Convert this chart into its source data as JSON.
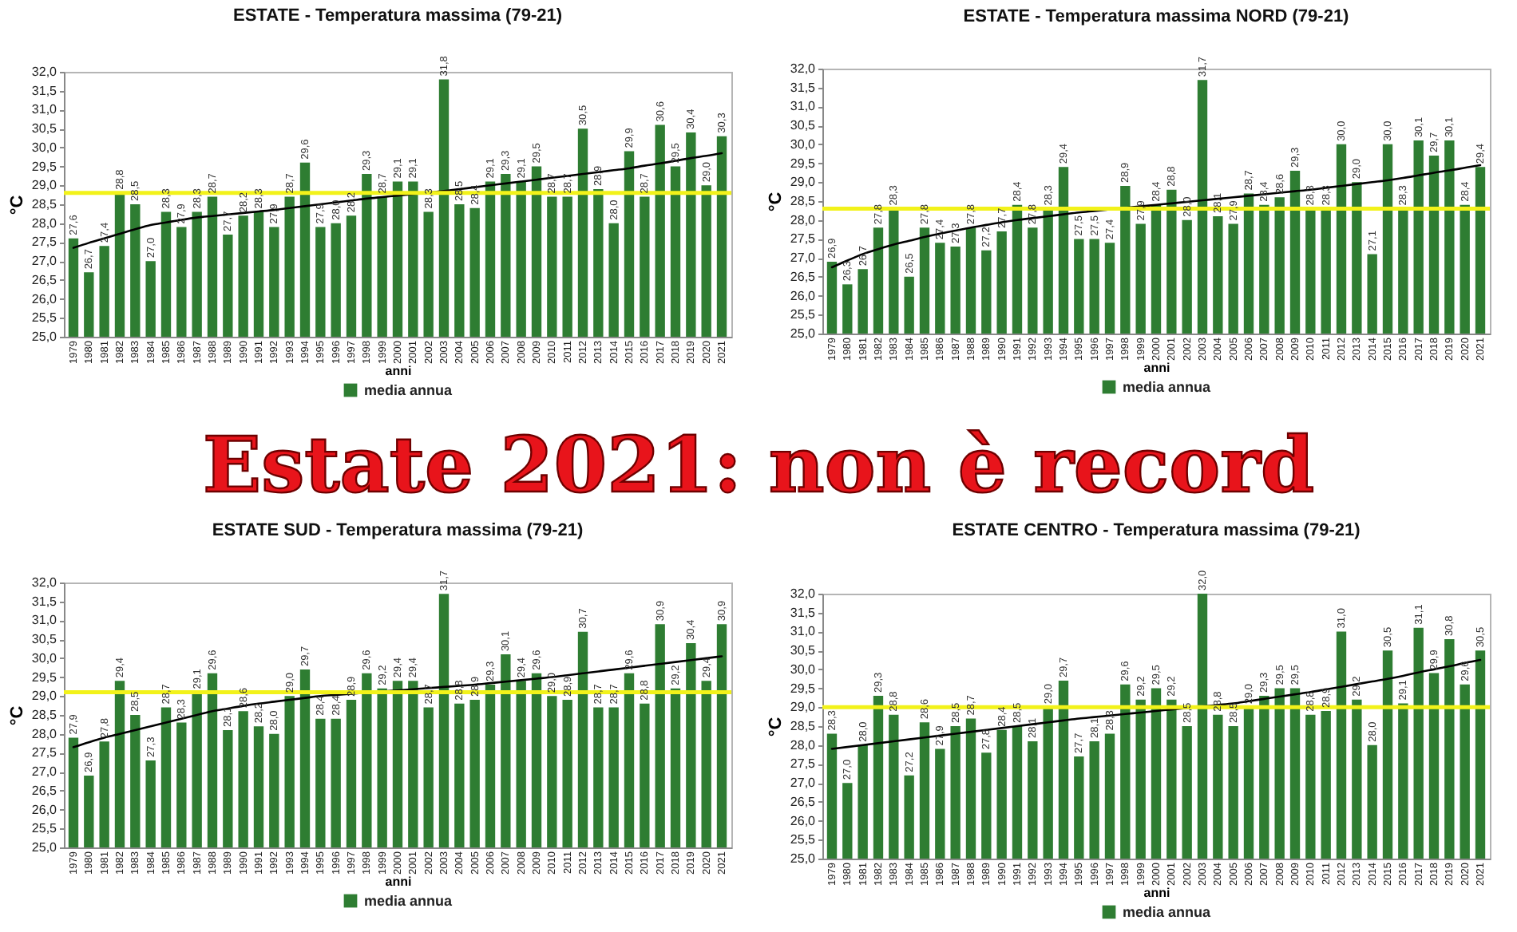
{
  "chart_data": [
    {
      "type": "bar",
      "title": "ESTATE - Temperatura massima (79-21)",
      "xlabel": "anni",
      "ylabel": "°C",
      "legend": "bottom",
      "grid": false,
      "categories": [
        "1979",
        "1980",
        "1981",
        "1982",
        "1983",
        "1984",
        "1985",
        "1986",
        "1987",
        "1988",
        "1989",
        "1990",
        "1991",
        "1992",
        "1993",
        "1994",
        "1995",
        "1996",
        "1997",
        "1998",
        "1999",
        "2000",
        "2001",
        "2002",
        "2003",
        "2004",
        "2005",
        "2006",
        "2007",
        "2008",
        "2009",
        "2010",
        "2011",
        "2012",
        "2013",
        "2014",
        "2015",
        "2016",
        "2017",
        "2018",
        "2019",
        "2020",
        "2021"
      ],
      "series": [
        {
          "name": "media annua",
          "type": "bar",
          "color": "#2e7d32",
          "values": [
            27.6,
            26.7,
            27.4,
            28.8,
            28.5,
            27.0,
            28.3,
            27.9,
            28.3,
            28.7,
            27.7,
            28.2,
            28.3,
            27.9,
            28.7,
            29.6,
            27.9,
            28.0,
            28.2,
            29.3,
            28.7,
            29.1,
            29.1,
            28.3,
            31.8,
            28.5,
            28.4,
            29.1,
            29.3,
            29.1,
            29.5,
            28.7,
            28.7,
            30.5,
            28.9,
            28.0,
            29.9,
            28.7,
            30.6,
            29.5,
            30.4,
            29.0,
            30.3
          ],
          "value_labels": [
            "27,6",
            "26,7",
            "27,4",
            "28,8",
            "28,5",
            "27,0",
            "28,3",
            "27,9",
            "28,3",
            "28,7",
            "27,7",
            "28,2",
            "28,3",
            "27,9",
            "28,7",
            "29,6",
            "27,9",
            "28,0",
            "28,2",
            "29,3",
            "28,7",
            "29,1",
            "29,1",
            "28,3",
            "31,8",
            "28,5",
            "28,4",
            "29,1",
            "29,3",
            "29,1",
            "29,5",
            "28,7",
            "28,7",
            "30,5",
            "28,9",
            "28,0",
            "29,9",
            "28,7",
            "30,6",
            "29,5",
            "30,4",
            "29,0",
            "30,3"
          ]
        },
        {
          "type": "line",
          "color": "#000000",
          "values": [
            27.35,
            27.48,
            27.6,
            27.72,
            27.84,
            27.95,
            28.02,
            28.09,
            28.15,
            28.19,
            28.23,
            28.27,
            28.31,
            28.35,
            28.4,
            28.45,
            28.5,
            28.55,
            28.6,
            28.65,
            28.69,
            28.73,
            28.77,
            28.81,
            28.85,
            28.9,
            28.95,
            29.0,
            29.05,
            29.1,
            29.15,
            29.2,
            29.25,
            29.3,
            29.35,
            29.4,
            29.45,
            29.52,
            29.58,
            29.65,
            29.72,
            29.78,
            29.85
          ]
        }
      ],
      "ref_lines": [
        {
          "axis": "y",
          "value": 28.8,
          "color": "#f2f21a"
        }
      ],
      "ylim": [
        25,
        32
      ],
      "yticks": [
        {
          "value": 25,
          "label": "25,0"
        },
        {
          "value": 25.5,
          "label": "25,5"
        },
        {
          "value": 26,
          "label": "26,0"
        },
        {
          "value": 26.5,
          "label": "26,5"
        },
        {
          "value": 27,
          "label": "27,0"
        },
        {
          "value": 27.5,
          "label": "27,5"
        },
        {
          "value": 28,
          "label": "28,0"
        },
        {
          "value": 28.5,
          "label": "28,5"
        },
        {
          "value": 29,
          "label": "29,0"
        },
        {
          "value": 29.5,
          "label": "29,5"
        },
        {
          "value": 30,
          "label": "30,0"
        },
        {
          "value": 30.5,
          "label": "30,5"
        },
        {
          "value": 31,
          "label": "31,0"
        },
        {
          "value": 31.5,
          "label": "31,5"
        },
        {
          "value": 32,
          "label": "32,0"
        }
      ]
    },
    {
      "type": "bar",
      "title": "ESTATE - Temperatura massima NORD (79-21)",
      "xlabel": "anni",
      "ylabel": "°C",
      "legend": "bottom",
      "grid": false,
      "categories": [
        "1979",
        "1980",
        "1981",
        "1982",
        "1983",
        "1984",
        "1985",
        "1986",
        "1987",
        "1988",
        "1989",
        "1990",
        "1991",
        "1992",
        "1993",
        "1994",
        "1995",
        "1996",
        "1997",
        "1998",
        "1999",
        "2000",
        "2001",
        "2002",
        "2003",
        "2004",
        "2005",
        "2006",
        "2007",
        "2008",
        "2009",
        "2010",
        "2011",
        "2012",
        "2013",
        "2014",
        "2015",
        "2016",
        "2017",
        "2018",
        "2019",
        "2020",
        "2021"
      ],
      "series": [
        {
          "name": "media annua",
          "type": "bar",
          "color": "#2e7d32",
          "values": [
            26.9,
            26.3,
            26.7,
            27.8,
            28.3,
            26.5,
            27.8,
            27.4,
            27.3,
            27.8,
            27.2,
            27.7,
            28.4,
            27.8,
            28.3,
            29.4,
            27.5,
            27.5,
            27.4,
            28.9,
            27.9,
            28.4,
            28.8,
            28.0,
            31.7,
            28.1,
            27.9,
            28.7,
            28.4,
            28.6,
            29.3,
            28.3,
            28.3,
            30.0,
            29.0,
            27.1,
            30.0,
            28.3,
            30.1,
            29.7,
            30.1,
            28.4,
            29.4
          ],
          "value_labels": [
            "26,9",
            "26,3",
            "26,7",
            "27,8",
            "28,3",
            "26,5",
            "27,8",
            "27,4",
            "27,3",
            "27,8",
            "27,2",
            "27,7",
            "28,4",
            "27,8",
            "28,3",
            "29,4",
            "27,5",
            "27,5",
            "27,4",
            "28,9",
            "27,9",
            "28,4",
            "28,8",
            "28,0",
            "31,7",
            "28,1",
            "27,9",
            "28,7",
            "28,4",
            "28,6",
            "29,3",
            "28,3",
            "28,3",
            "30,0",
            "29,0",
            "27,1",
            "30,0",
            "28,3",
            "30,1",
            "29,7",
            "30,1",
            "28,4",
            "29,4"
          ]
        },
        {
          "type": "line",
          "color": "#000000",
          "values": [
            26.75,
            26.93,
            27.1,
            27.23,
            27.35,
            27.45,
            27.55,
            27.64,
            27.72,
            27.8,
            27.87,
            27.94,
            28.0,
            28.05,
            28.1,
            28.15,
            28.2,
            28.24,
            28.28,
            28.32,
            28.36,
            28.4,
            28.44,
            28.48,
            28.52,
            28.56,
            28.6,
            28.64,
            28.68,
            28.72,
            28.76,
            28.8,
            28.85,
            28.9,
            28.95,
            29.0,
            29.05,
            29.11,
            29.18,
            29.25,
            29.31,
            29.38,
            29.45
          ]
        }
      ],
      "ref_lines": [
        {
          "axis": "y",
          "value": 28.3,
          "color": "#f2f21a"
        }
      ],
      "ylim": [
        25,
        32
      ],
      "yticks": [
        {
          "value": 25,
          "label": "25,0"
        },
        {
          "value": 25.5,
          "label": "25,5"
        },
        {
          "value": 26,
          "label": "26,0"
        },
        {
          "value": 26.5,
          "label": "26,5"
        },
        {
          "value": 27,
          "label": "27,0"
        },
        {
          "value": 27.5,
          "label": "27,5"
        },
        {
          "value": 28,
          "label": "28,0"
        },
        {
          "value": 28.5,
          "label": "28,5"
        },
        {
          "value": 29,
          "label": "29,0"
        },
        {
          "value": 29.5,
          "label": "29,5"
        },
        {
          "value": 30,
          "label": "30,0"
        },
        {
          "value": 30.5,
          "label": "30,5"
        },
        {
          "value": 31,
          "label": "31,0"
        },
        {
          "value": 31.5,
          "label": "31,5"
        },
        {
          "value": 32,
          "label": "32,0"
        }
      ]
    },
    {
      "type": "other",
      "title": "Estate 2021: non è record"
    },
    {
      "type": "bar",
      "title": "ESTATE SUD - Temperatura massima (79-21)",
      "xlabel": "anni",
      "ylabel": "°C",
      "legend": "bottom",
      "grid": false,
      "categories": [
        "1979",
        "1980",
        "1981",
        "1982",
        "1983",
        "1984",
        "1985",
        "1986",
        "1987",
        "1988",
        "1989",
        "1990",
        "1991",
        "1992",
        "1993",
        "1994",
        "1995",
        "1996",
        "1997",
        "1998",
        "1999",
        "2000",
        "2001",
        "2002",
        "2003",
        "2004",
        "2005",
        "2006",
        "2007",
        "2008",
        "2009",
        "2010",
        "2011",
        "2012",
        "2013",
        "2014",
        "2015",
        "2016",
        "2017",
        "2018",
        "2019",
        "2020",
        "2021"
      ],
      "series": [
        {
          "name": "media annua",
          "type": "bar",
          "color": "#2e7d32",
          "values": [
            27.9,
            26.9,
            27.8,
            29.4,
            28.5,
            27.3,
            28.7,
            28.3,
            29.1,
            29.6,
            28.1,
            28.6,
            28.2,
            28.0,
            29.0,
            29.7,
            28.4,
            28.4,
            28.9,
            29.6,
            29.2,
            29.4,
            29.4,
            28.7,
            31.7,
            28.8,
            28.9,
            29.3,
            30.1,
            29.4,
            29.6,
            29.0,
            28.9,
            30.7,
            28.7,
            28.7,
            29.6,
            28.8,
            30.9,
            29.2,
            30.4,
            29.4,
            30.9
          ],
          "value_labels": [
            "27,9",
            "26,9",
            "27,8",
            "29,4",
            "28,5",
            "27,3",
            "28,7",
            "28,3",
            "29,1",
            "29,6",
            "28,1",
            "28,6",
            "28,2",
            "28,0",
            "29,0",
            "29,7",
            "28,4",
            "28,4",
            "28,9",
            "29,6",
            "29,2",
            "29,4",
            "29,4",
            "28,7",
            "31,7",
            "28,8",
            "28,9",
            "29,3",
            "30,1",
            "29,4",
            "29,6",
            "29,0",
            "28,9",
            "30,7",
            "28,7",
            "28,7",
            "29,6",
            "28,8",
            "30,9",
            "29,2",
            "30,4",
            "29,4",
            "30,9"
          ]
        },
        {
          "type": "line",
          "color": "#000000",
          "values": [
            27.65,
            27.78,
            27.9,
            28.0,
            28.1,
            28.2,
            28.3,
            28.4,
            28.5,
            28.6,
            28.67,
            28.74,
            28.8,
            28.85,
            28.9,
            28.95,
            29.0,
            29.03,
            29.06,
            29.09,
            29.12,
            29.15,
            29.18,
            29.21,
            29.24,
            29.27,
            29.3,
            29.34,
            29.38,
            29.42,
            29.46,
            29.5,
            29.55,
            29.6,
            29.65,
            29.7,
            29.75,
            29.8,
            29.85,
            29.9,
            29.95,
            30.0,
            30.05
          ]
        }
      ],
      "ref_lines": [
        {
          "axis": "y",
          "value": 29.1,
          "color": "#f2f21a"
        }
      ],
      "ylim": [
        25,
        32
      ],
      "yticks": [
        {
          "value": 25,
          "label": "25,0"
        },
        {
          "value": 25.5,
          "label": "25,5"
        },
        {
          "value": 26,
          "label": "26,0"
        },
        {
          "value": 26.5,
          "label": "26,5"
        },
        {
          "value": 27,
          "label": "27,0"
        },
        {
          "value": 27.5,
          "label": "27,5"
        },
        {
          "value": 28,
          "label": "28,0"
        },
        {
          "value": 28.5,
          "label": "28,5"
        },
        {
          "value": 29,
          "label": "29,0"
        },
        {
          "value": 29.5,
          "label": "29,5"
        },
        {
          "value": 30,
          "label": "30,0"
        },
        {
          "value": 30.5,
          "label": "30,5"
        },
        {
          "value": 31,
          "label": "31,0"
        },
        {
          "value": 31.5,
          "label": "31,5"
        },
        {
          "value": 32,
          "label": "32,0"
        }
      ]
    },
    {
      "type": "bar",
      "title": "ESTATE CENTRO - Temperatura massima (79-21)",
      "xlabel": "anni",
      "ylabel": "°C",
      "legend": "bottom",
      "grid": false,
      "categories": [
        "1979",
        "1980",
        "1981",
        "1982",
        "1983",
        "1984",
        "1985",
        "1986",
        "1987",
        "1988",
        "1989",
        "1990",
        "1991",
        "1992",
        "1993",
        "1994",
        "1995",
        "1996",
        "1997",
        "1998",
        "1999",
        "2000",
        "2001",
        "2002",
        "2003",
        "2004",
        "2005",
        "2006",
        "2007",
        "2008",
        "2009",
        "2010",
        "2011",
        "2012",
        "2013",
        "2014",
        "2015",
        "2016",
        "2017",
        "2018",
        "2019",
        "2020",
        "2021"
      ],
      "series": [
        {
          "name": "media annua",
          "type": "bar",
          "color": "#2e7d32",
          "values": [
            28.3,
            27.0,
            28.0,
            29.3,
            28.8,
            27.2,
            28.6,
            27.9,
            28.5,
            28.7,
            27.8,
            28.4,
            28.5,
            28.1,
            29.0,
            29.7,
            27.7,
            28.1,
            28.3,
            29.6,
            29.2,
            29.5,
            29.2,
            28.5,
            32.0,
            28.8,
            28.5,
            29.0,
            29.3,
            29.5,
            29.5,
            28.8,
            28.9,
            31.0,
            29.2,
            28.0,
            30.5,
            29.1,
            31.1,
            29.9,
            30.8,
            29.6,
            30.5
          ],
          "value_labels": [
            "28,3",
            "27,0",
            "28,0",
            "29,3",
            "28,8",
            "27,2",
            "28,6",
            "27,9",
            "28,5",
            "28,7",
            "27,8",
            "28,4",
            "28,5",
            "28,1",
            "29,0",
            "29,7",
            "27,7",
            "28,1",
            "28,3",
            "29,6",
            "29,2",
            "29,5",
            "29,2",
            "28,5",
            "32,0",
            "28,8",
            "28,5",
            "29,0",
            "29,3",
            "29,5",
            "29,5",
            "28,8",
            "28,9",
            "31,0",
            "29,2",
            "28,0",
            "30,5",
            "29,1",
            "31,1",
            "29,9",
            "30,8",
            "29,6",
            "30,5"
          ]
        },
        {
          "type": "line",
          "color": "#000000",
          "values": [
            27.9,
            27.95,
            28.0,
            28.05,
            28.1,
            28.15,
            28.2,
            28.25,
            28.3,
            28.35,
            28.4,
            28.45,
            28.5,
            28.55,
            28.6,
            28.65,
            28.7,
            28.74,
            28.78,
            28.82,
            28.86,
            28.9,
            28.94,
            28.98,
            29.02,
            29.06,
            29.1,
            29.16,
            29.22,
            29.28,
            29.34,
            29.4,
            29.47,
            29.54,
            29.61,
            29.68,
            29.75,
            29.83,
            29.92,
            30.0,
            30.08,
            30.17,
            30.25
          ]
        }
      ],
      "ref_lines": [
        {
          "axis": "y",
          "value": 29.0,
          "color": "#f2f21a"
        }
      ],
      "ylim": [
        25,
        32
      ],
      "yticks": [
        {
          "value": 25,
          "label": "25,0"
        },
        {
          "value": 25.5,
          "label": "25,5"
        },
        {
          "value": 26,
          "label": "26,0"
        },
        {
          "value": 26.5,
          "label": "26,5"
        },
        {
          "value": 27,
          "label": "27,0"
        },
        {
          "value": 27.5,
          "label": "27,5"
        },
        {
          "value": 28,
          "label": "28,0"
        },
        {
          "value": 28.5,
          "label": "28,5"
        },
        {
          "value": 29,
          "label": "29,0"
        },
        {
          "value": 29.5,
          "label": "29,5"
        },
        {
          "value": 30,
          "label": "30,0"
        },
        {
          "value": 30.5,
          "label": "30,5"
        },
        {
          "value": 31,
          "label": "31,0"
        },
        {
          "value": 31.5,
          "label": "31,5"
        },
        {
          "value": 32,
          "label": "32,0"
        }
      ]
    }
  ]
}
